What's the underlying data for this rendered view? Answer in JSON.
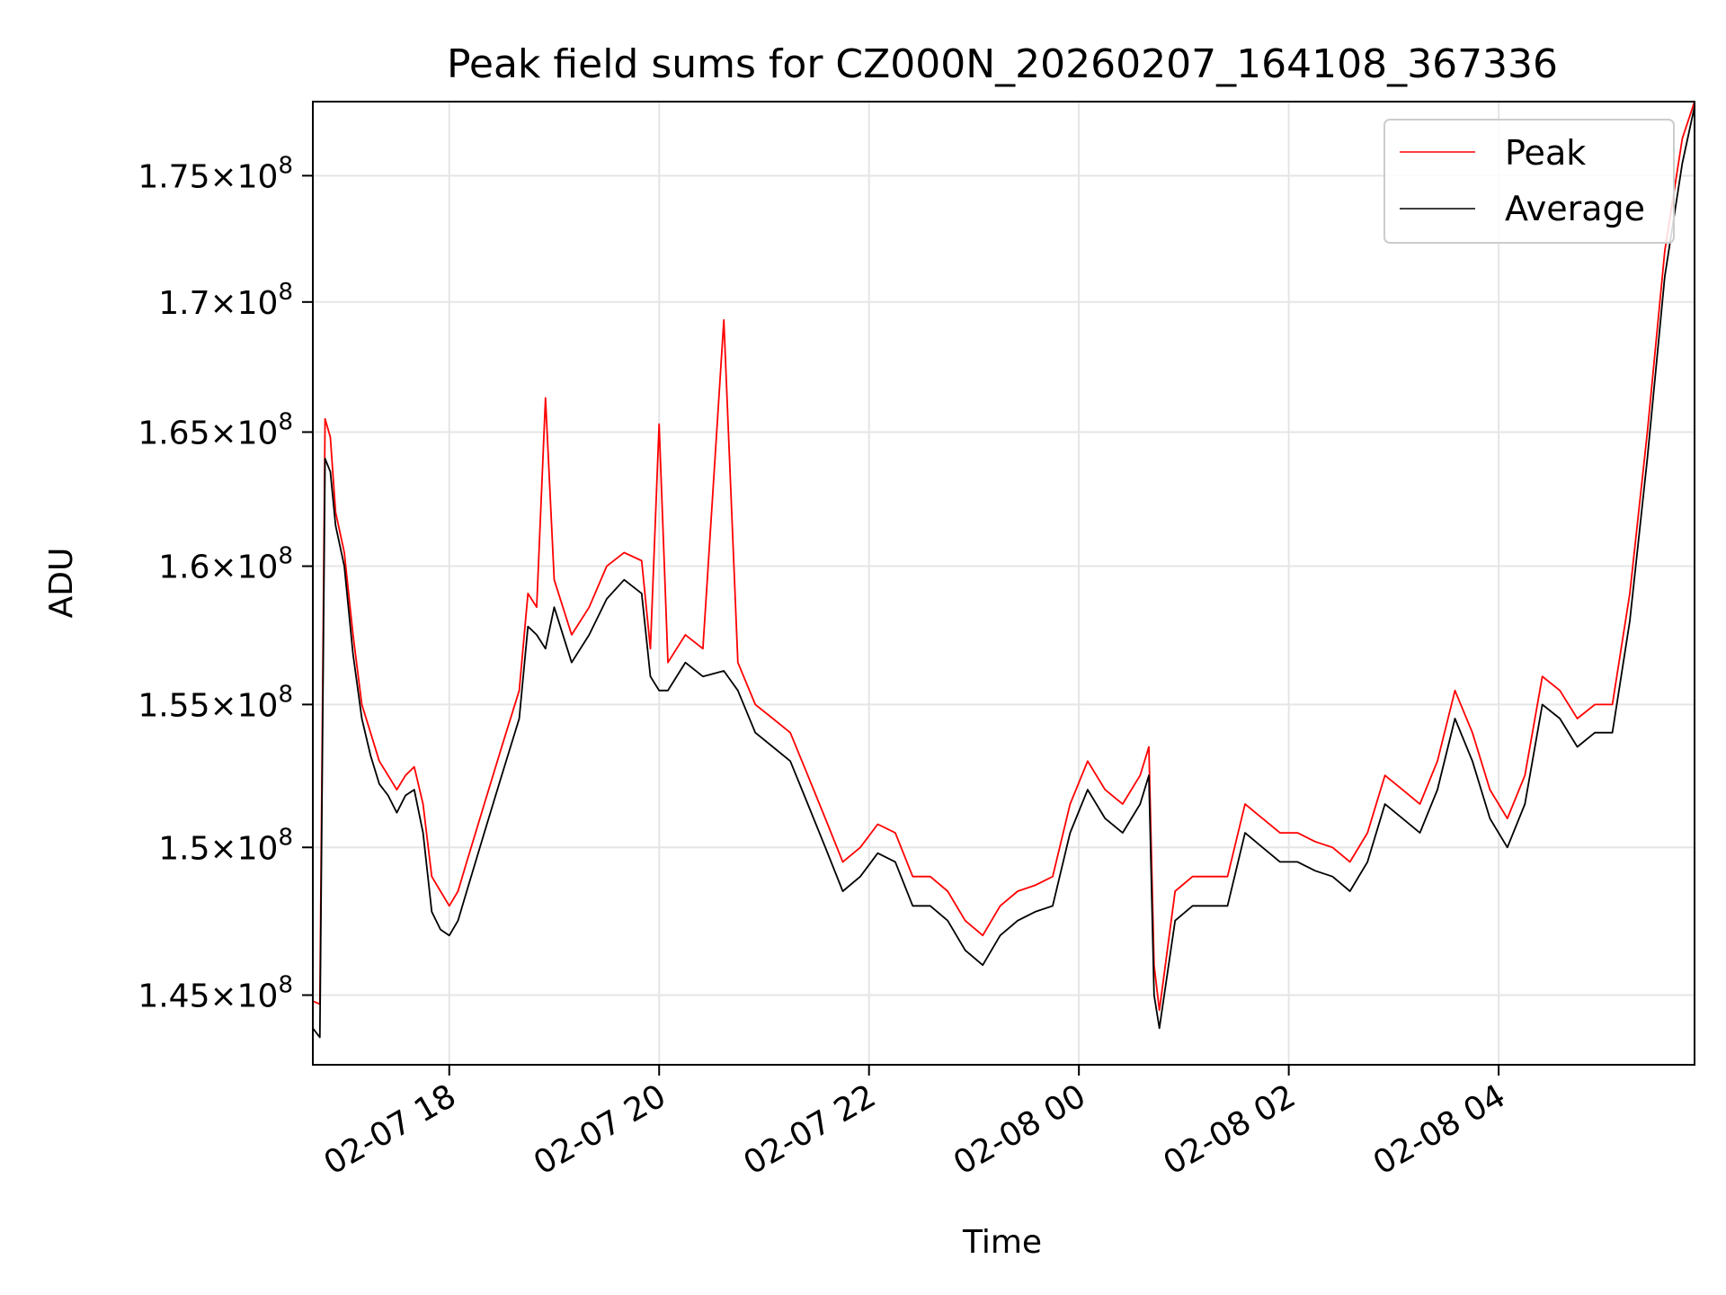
{
  "chart_data": {
    "type": "line",
    "title": "Peak field sums for CZ000N_20260207_164108_367336",
    "xlabel": "Time",
    "ylabel": "ADU",
    "x_unit": "datetime",
    "xlim": [
      "2026-02-07T16:42",
      "2026-02-08T05:52"
    ],
    "ylim": [
      142700000,
      178000000
    ],
    "y_scale": "log",
    "grid": true,
    "legend_position": "upper right",
    "x_ticks": [
      {
        "value": "2026-02-07T18:00",
        "label": "02-07 18"
      },
      {
        "value": "2026-02-07T20:00",
        "label": "02-07 20"
      },
      {
        "value": "2026-02-07T22:00",
        "label": "02-07 22"
      },
      {
        "value": "2026-02-08T00:00",
        "label": "02-08 00"
      },
      {
        "value": "2026-02-08T02:00",
        "label": "02-08 02"
      },
      {
        "value": "2026-02-08T04:00",
        "label": "02-08 04"
      }
    ],
    "y_ticks": [
      {
        "value": 145000000,
        "mantissa": "1.45",
        "exponent": "8"
      },
      {
        "value": 150000000,
        "mantissa": "1.5",
        "exponent": "8"
      },
      {
        "value": 155000000,
        "mantissa": "1.55",
        "exponent": "8"
      },
      {
        "value": 160000000,
        "mantissa": "1.6",
        "exponent": "8"
      },
      {
        "value": 165000000,
        "mantissa": "1.65",
        "exponent": "8"
      },
      {
        "value": 170000000,
        "mantissa": "1.7",
        "exponent": "8"
      },
      {
        "value": 175000000,
        "mantissa": "1.75",
        "exponent": "8"
      }
    ],
    "series": [
      {
        "name": "Peak",
        "color": "#ff0000",
        "points": [
          [
            "2026-02-07T16:42",
            144800000
          ],
          [
            "2026-02-07T16:46",
            144700000
          ],
          [
            "2026-02-07T16:49",
            165500000
          ],
          [
            "2026-02-07T16:52",
            164800000
          ],
          [
            "2026-02-07T16:55",
            162000000
          ],
          [
            "2026-02-07T17:00",
            160500000
          ],
          [
            "2026-02-07T17:05",
            157500000
          ],
          [
            "2026-02-07T17:10",
            155000000
          ],
          [
            "2026-02-07T17:15",
            154000000
          ],
          [
            "2026-02-07T17:20",
            153000000
          ],
          [
            "2026-02-07T17:25",
            152500000
          ],
          [
            "2026-02-07T17:30",
            152000000
          ],
          [
            "2026-02-07T17:35",
            152500000
          ],
          [
            "2026-02-07T17:40",
            152800000
          ],
          [
            "2026-02-07T17:45",
            151500000
          ],
          [
            "2026-02-07T17:50",
            149000000
          ],
          [
            "2026-02-07T17:55",
            148500000
          ],
          [
            "2026-02-07T18:00",
            148000000
          ],
          [
            "2026-02-07T18:05",
            148500000
          ],
          [
            "2026-02-07T18:10",
            149500000
          ],
          [
            "2026-02-07T18:20",
            151500000
          ],
          [
            "2026-02-07T18:30",
            153500000
          ],
          [
            "2026-02-07T18:40",
            155500000
          ],
          [
            "2026-02-07T18:45",
            159000000
          ],
          [
            "2026-02-07T18:50",
            158500000
          ],
          [
            "2026-02-07T18:55",
            166300000
          ],
          [
            "2026-02-07T19:00",
            159500000
          ],
          [
            "2026-02-07T19:10",
            157500000
          ],
          [
            "2026-02-07T19:20",
            158500000
          ],
          [
            "2026-02-07T19:30",
            160000000
          ],
          [
            "2026-02-07T19:40",
            160500000
          ],
          [
            "2026-02-07T19:50",
            160200000
          ],
          [
            "2026-02-07T19:55",
            157000000
          ],
          [
            "2026-02-07T20:00",
            165300000
          ],
          [
            "2026-02-07T20:05",
            156500000
          ],
          [
            "2026-02-07T20:15",
            157500000
          ],
          [
            "2026-02-07T20:25",
            157000000
          ],
          [
            "2026-02-07T20:37",
            169300000
          ],
          [
            "2026-02-07T20:45",
            156500000
          ],
          [
            "2026-02-07T20:55",
            155000000
          ],
          [
            "2026-02-07T21:05",
            154500000
          ],
          [
            "2026-02-07T21:15",
            154000000
          ],
          [
            "2026-02-07T21:25",
            152500000
          ],
          [
            "2026-02-07T21:35",
            151000000
          ],
          [
            "2026-02-07T21:45",
            149500000
          ],
          [
            "2026-02-07T21:55",
            150000000
          ],
          [
            "2026-02-07T22:05",
            150800000
          ],
          [
            "2026-02-07T22:15",
            150500000
          ],
          [
            "2026-02-07T22:25",
            149000000
          ],
          [
            "2026-02-07T22:35",
            149000000
          ],
          [
            "2026-02-07T22:45",
            148500000
          ],
          [
            "2026-02-07T22:55",
            147500000
          ],
          [
            "2026-02-07T23:05",
            147000000
          ],
          [
            "2026-02-07T23:15",
            148000000
          ],
          [
            "2026-02-07T23:25",
            148500000
          ],
          [
            "2026-02-07T23:35",
            148700000
          ],
          [
            "2026-02-07T23:45",
            149000000
          ],
          [
            "2026-02-07T23:55",
            151500000
          ],
          [
            "2026-02-08T00:05",
            153000000
          ],
          [
            "2026-02-08T00:15",
            152000000
          ],
          [
            "2026-02-08T00:25",
            151500000
          ],
          [
            "2026-02-08T00:35",
            152500000
          ],
          [
            "2026-02-08T00:40",
            153500000
          ],
          [
            "2026-02-08T00:43",
            146000000
          ],
          [
            "2026-02-08T00:46",
            144500000
          ],
          [
            "2026-02-08T00:55",
            148500000
          ],
          [
            "2026-02-08T01:05",
            149000000
          ],
          [
            "2026-02-08T01:15",
            149000000
          ],
          [
            "2026-02-08T01:25",
            149000000
          ],
          [
            "2026-02-08T01:35",
            151500000
          ],
          [
            "2026-02-08T01:45",
            151000000
          ],
          [
            "2026-02-08T01:55",
            150500000
          ],
          [
            "2026-02-08T02:05",
            150500000
          ],
          [
            "2026-02-08T02:15",
            150200000
          ],
          [
            "2026-02-08T02:25",
            150000000
          ],
          [
            "2026-02-08T02:35",
            149500000
          ],
          [
            "2026-02-08T02:45",
            150500000
          ],
          [
            "2026-02-08T02:55",
            152500000
          ],
          [
            "2026-02-08T03:05",
            152000000
          ],
          [
            "2026-02-08T03:15",
            151500000
          ],
          [
            "2026-02-08T03:25",
            153000000
          ],
          [
            "2026-02-08T03:35",
            155500000
          ],
          [
            "2026-02-08T03:45",
            154000000
          ],
          [
            "2026-02-08T03:55",
            152000000
          ],
          [
            "2026-02-08T04:05",
            151000000
          ],
          [
            "2026-02-08T04:15",
            152500000
          ],
          [
            "2026-02-08T04:25",
            156000000
          ],
          [
            "2026-02-08T04:35",
            155500000
          ],
          [
            "2026-02-08T04:45",
            154500000
          ],
          [
            "2026-02-08T04:55",
            155000000
          ],
          [
            "2026-02-08T05:05",
            155000000
          ],
          [
            "2026-02-08T05:15",
            159000000
          ],
          [
            "2026-02-08T05:25",
            165000000
          ],
          [
            "2026-02-08T05:35",
            172000000
          ],
          [
            "2026-02-08T05:45",
            176500000
          ],
          [
            "2026-02-08T05:52",
            178000000
          ]
        ]
      },
      {
        "name": "Average",
        "color": "#000000",
        "points": [
          [
            "2026-02-07T16:42",
            143900000
          ],
          [
            "2026-02-07T16:46",
            143600000
          ],
          [
            "2026-02-07T16:49",
            164000000
          ],
          [
            "2026-02-07T16:52",
            163500000
          ],
          [
            "2026-02-07T16:55",
            161500000
          ],
          [
            "2026-02-07T17:00",
            160000000
          ],
          [
            "2026-02-07T17:05",
            156800000
          ],
          [
            "2026-02-07T17:10",
            154500000
          ],
          [
            "2026-02-07T17:15",
            153200000
          ],
          [
            "2026-02-07T17:20",
            152200000
          ],
          [
            "2026-02-07T17:25",
            151800000
          ],
          [
            "2026-02-07T17:30",
            151200000
          ],
          [
            "2026-02-07T17:35",
            151800000
          ],
          [
            "2026-02-07T17:40",
            152000000
          ],
          [
            "2026-02-07T17:45",
            150500000
          ],
          [
            "2026-02-07T17:50",
            147800000
          ],
          [
            "2026-02-07T17:55",
            147200000
          ],
          [
            "2026-02-07T18:00",
            147000000
          ],
          [
            "2026-02-07T18:05",
            147500000
          ],
          [
            "2026-02-07T18:10",
            148500000
          ],
          [
            "2026-02-07T18:20",
            150500000
          ],
          [
            "2026-02-07T18:30",
            152500000
          ],
          [
            "2026-02-07T18:40",
            154500000
          ],
          [
            "2026-02-07T18:45",
            157800000
          ],
          [
            "2026-02-07T18:50",
            157500000
          ],
          [
            "2026-02-07T18:55",
            157000000
          ],
          [
            "2026-02-07T19:00",
            158500000
          ],
          [
            "2026-02-07T19:10",
            156500000
          ],
          [
            "2026-02-07T19:20",
            157500000
          ],
          [
            "2026-02-07T19:30",
            158800000
          ],
          [
            "2026-02-07T19:40",
            159500000
          ],
          [
            "2026-02-07T19:50",
            159000000
          ],
          [
            "2026-02-07T19:55",
            156000000
          ],
          [
            "2026-02-07T20:00",
            155500000
          ],
          [
            "2026-02-07T20:05",
            155500000
          ],
          [
            "2026-02-07T20:15",
            156500000
          ],
          [
            "2026-02-07T20:25",
            156000000
          ],
          [
            "2026-02-07T20:37",
            156200000
          ],
          [
            "2026-02-07T20:45",
            155500000
          ],
          [
            "2026-02-07T20:55",
            154000000
          ],
          [
            "2026-02-07T21:05",
            153500000
          ],
          [
            "2026-02-07T21:15",
            153000000
          ],
          [
            "2026-02-07T21:25",
            151500000
          ],
          [
            "2026-02-07T21:35",
            150000000
          ],
          [
            "2026-02-07T21:45",
            148500000
          ],
          [
            "2026-02-07T21:55",
            149000000
          ],
          [
            "2026-02-07T22:05",
            149800000
          ],
          [
            "2026-02-07T22:15",
            149500000
          ],
          [
            "2026-02-07T22:25",
            148000000
          ],
          [
            "2026-02-07T22:35",
            148000000
          ],
          [
            "2026-02-07T22:45",
            147500000
          ],
          [
            "2026-02-07T22:55",
            146500000
          ],
          [
            "2026-02-07T23:05",
            146000000
          ],
          [
            "2026-02-07T23:15",
            147000000
          ],
          [
            "2026-02-07T23:25",
            147500000
          ],
          [
            "2026-02-07T23:35",
            147800000
          ],
          [
            "2026-02-07T23:45",
            148000000
          ],
          [
            "2026-02-07T23:55",
            150500000
          ],
          [
            "2026-02-08T00:05",
            152000000
          ],
          [
            "2026-02-08T00:15",
            151000000
          ],
          [
            "2026-02-08T00:25",
            150500000
          ],
          [
            "2026-02-08T00:35",
            151500000
          ],
          [
            "2026-02-08T00:40",
            152500000
          ],
          [
            "2026-02-08T00:43",
            145000000
          ],
          [
            "2026-02-08T00:46",
            143900000
          ],
          [
            "2026-02-08T00:55",
            147500000
          ],
          [
            "2026-02-08T01:05",
            148000000
          ],
          [
            "2026-02-08T01:15",
            148000000
          ],
          [
            "2026-02-08T01:25",
            148000000
          ],
          [
            "2026-02-08T01:35",
            150500000
          ],
          [
            "2026-02-08T01:45",
            150000000
          ],
          [
            "2026-02-08T01:55",
            149500000
          ],
          [
            "2026-02-08T02:05",
            149500000
          ],
          [
            "2026-02-08T02:15",
            149200000
          ],
          [
            "2026-02-08T02:25",
            149000000
          ],
          [
            "2026-02-08T02:35",
            148500000
          ],
          [
            "2026-02-08T02:45",
            149500000
          ],
          [
            "2026-02-08T02:55",
            151500000
          ],
          [
            "2026-02-08T03:05",
            151000000
          ],
          [
            "2026-02-08T03:15",
            150500000
          ],
          [
            "2026-02-08T03:25",
            152000000
          ],
          [
            "2026-02-08T03:35",
            154500000
          ],
          [
            "2026-02-08T03:45",
            153000000
          ],
          [
            "2026-02-08T03:55",
            151000000
          ],
          [
            "2026-02-08T04:05",
            150000000
          ],
          [
            "2026-02-08T04:15",
            151500000
          ],
          [
            "2026-02-08T04:25",
            155000000
          ],
          [
            "2026-02-08T04:35",
            154500000
          ],
          [
            "2026-02-08T04:45",
            153500000
          ],
          [
            "2026-02-08T04:55",
            154000000
          ],
          [
            "2026-02-08T05:05",
            154000000
          ],
          [
            "2026-02-08T05:15",
            158000000
          ],
          [
            "2026-02-08T05:25",
            164000000
          ],
          [
            "2026-02-08T05:35",
            171000000
          ],
          [
            "2026-02-08T05:45",
            175500000
          ],
          [
            "2026-02-08T05:52",
            177800000
          ]
        ]
      }
    ]
  }
}
